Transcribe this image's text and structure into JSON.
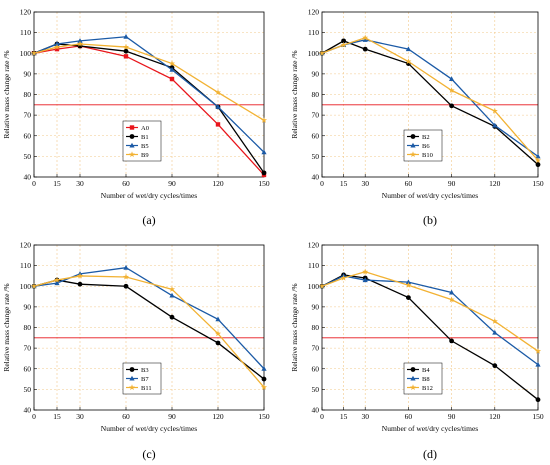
{
  "chart_data": [
    {
      "panel_label": "(a)",
      "type": "line",
      "xlabel": "Number of wet/dry cycles/times",
      "ylabel": "Relative mass change rate /%",
      "x": [
        0,
        15,
        30,
        60,
        90,
        120,
        150
      ],
      "xticks": [
        0,
        15,
        30,
        60,
        90,
        120,
        150
      ],
      "xlim": [
        0,
        150
      ],
      "ylim": [
        40,
        120
      ],
      "yticks": [
        40,
        50,
        60,
        70,
        80,
        90,
        100,
        110,
        120
      ],
      "grid": true,
      "reference_line": 75,
      "legend_position": "bottom-center",
      "series": [
        {
          "name": "A0",
          "color": "#e8151b",
          "marker": "square",
          "values": [
            100,
            102,
            103.5,
            98.5,
            87.5,
            65.5,
            41
          ]
        },
        {
          "name": "B1",
          "color": "#000000",
          "marker": "circle",
          "values": [
            100,
            104.5,
            103.5,
            101,
            93,
            74,
            42
          ]
        },
        {
          "name": "B5",
          "color": "#1b5aa6",
          "marker": "triangle",
          "values": [
            100,
            104.5,
            106,
            108,
            92,
            74,
            52
          ]
        },
        {
          "name": "B9",
          "color": "#f2b233",
          "marker": "star",
          "values": [
            100,
            103,
            104.5,
            103,
            95,
            81,
            67.5
          ]
        }
      ]
    },
    {
      "panel_label": "(b)",
      "type": "line",
      "xlabel": "Number of wet/dry cycles/times",
      "ylabel": "Relative mass change rate /%",
      "x": [
        0,
        15,
        30,
        60,
        90,
        120,
        150
      ],
      "xticks": [
        0,
        15,
        30,
        60,
        90,
        120,
        150
      ],
      "xlim": [
        0,
        150
      ],
      "ylim": [
        40,
        120
      ],
      "yticks": [
        40,
        50,
        60,
        70,
        80,
        90,
        100,
        110,
        120
      ],
      "grid": true,
      "reference_line": 75,
      "legend_position": "bottom-center",
      "series": [
        {
          "name": "B2",
          "color": "#000000",
          "marker": "circle",
          "values": [
            100,
            106,
            102,
            95,
            74.5,
            64.5,
            46
          ]
        },
        {
          "name": "B6",
          "color": "#1b5aa6",
          "marker": "triangle",
          "values": [
            100,
            104,
            106.5,
            102,
            87.5,
            65,
            50
          ]
        },
        {
          "name": "B10",
          "color": "#f2b233",
          "marker": "star",
          "values": [
            100,
            104,
            107.5,
            96,
            82,
            72,
            48
          ]
        }
      ]
    },
    {
      "panel_label": "(c)",
      "type": "line",
      "xlabel": "Number of wet/dry cycles/times",
      "ylabel": "Relative mass change rate /%",
      "x": [
        0,
        15,
        30,
        60,
        90,
        120,
        150
      ],
      "xticks": [
        0,
        15,
        30,
        60,
        90,
        120,
        150
      ],
      "xlim": [
        0,
        150
      ],
      "ylim": [
        40,
        120
      ],
      "yticks": [
        40,
        50,
        60,
        70,
        80,
        90,
        100,
        110,
        120
      ],
      "grid": true,
      "reference_line": 75,
      "legend_position": "bottom-center",
      "series": [
        {
          "name": "B3",
          "color": "#000000",
          "marker": "circle",
          "values": [
            100,
            103,
            101,
            100,
            85,
            72.5,
            55
          ]
        },
        {
          "name": "B7",
          "color": "#1b5aa6",
          "marker": "triangle",
          "values": [
            100,
            101.5,
            106,
            109,
            95.5,
            84,
            60
          ]
        },
        {
          "name": "B11",
          "color": "#f2b233",
          "marker": "star",
          "values": [
            100,
            103,
            105,
            104.5,
            98.5,
            77,
            51
          ]
        }
      ]
    },
    {
      "panel_label": "(d)",
      "type": "line",
      "xlabel": "Number of wet/dry cycles/times",
      "ylabel": "Relative mass change rate /%",
      "x": [
        0,
        15,
        30,
        60,
        90,
        120,
        150
      ],
      "xticks": [
        0,
        15,
        30,
        60,
        90,
        120,
        150
      ],
      "xlim": [
        0,
        150
      ],
      "ylim": [
        40,
        120
      ],
      "yticks": [
        40,
        50,
        60,
        70,
        80,
        90,
        100,
        110,
        120
      ],
      "grid": true,
      "reference_line": 75,
      "legend_position": "bottom-center",
      "series": [
        {
          "name": "B4",
          "color": "#000000",
          "marker": "circle",
          "values": [
            100,
            105.5,
            104,
            94.5,
            73.5,
            61.5,
            45
          ]
        },
        {
          "name": "B8",
          "color": "#1b5aa6",
          "marker": "triangle",
          "values": [
            100,
            105,
            103,
            102,
            97,
            77.5,
            62
          ]
        },
        {
          "name": "B12",
          "color": "#f2b233",
          "marker": "star",
          "values": [
            100,
            104,
            107,
            100.5,
            93.5,
            83,
            68.5
          ]
        }
      ]
    }
  ],
  "colors": {
    "reference_line": "#e8151b",
    "grid": "#f2c98a",
    "axis": "#000000"
  }
}
